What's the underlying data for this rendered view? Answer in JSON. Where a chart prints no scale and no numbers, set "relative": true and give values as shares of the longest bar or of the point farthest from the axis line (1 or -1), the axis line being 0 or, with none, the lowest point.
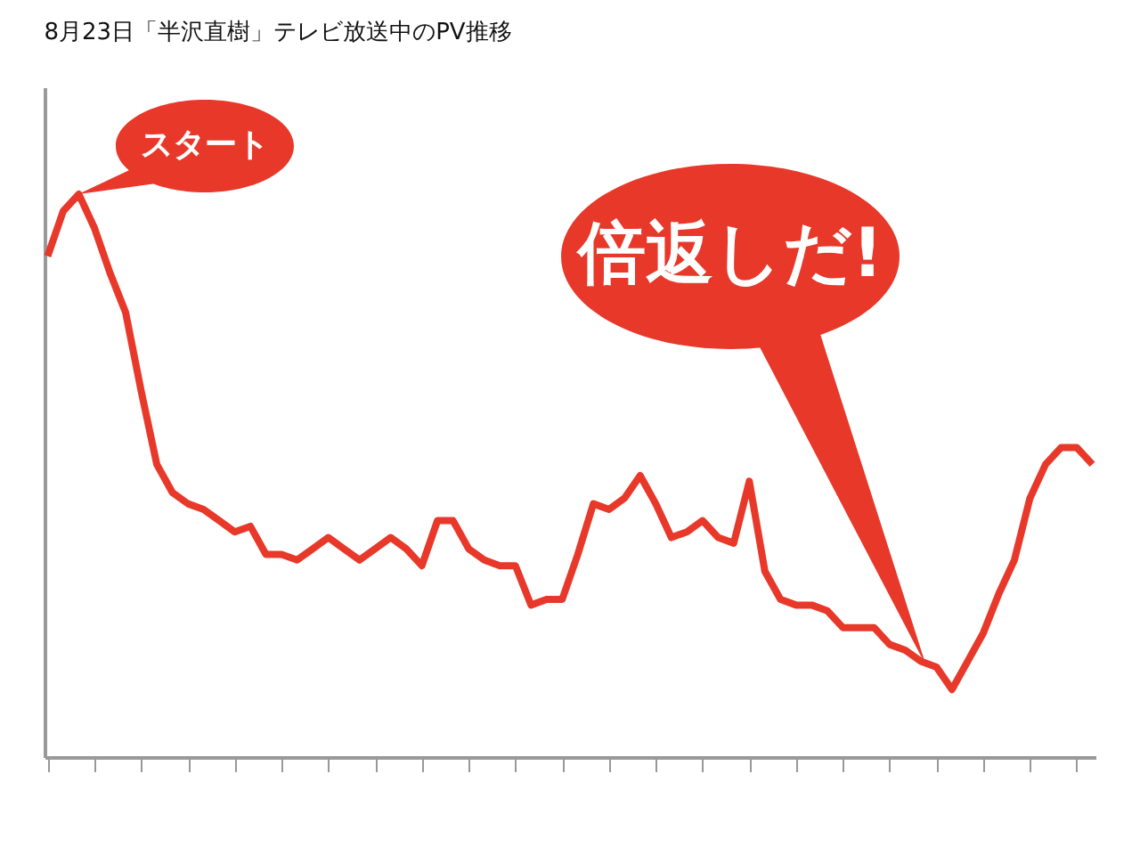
{
  "chart_data": {
    "type": "line",
    "title": "8月23日「半沢直樹」テレビ放送中のPV推移",
    "relative": true,
    "color": "#e8382a",
    "grid": false,
    "marker": "none",
    "line_style": "solid",
    "categories": [
      null,
      null,
      null,
      null,
      null,
      null,
      null,
      null,
      null,
      null,
      null,
      null,
      null,
      null,
      null,
      null,
      null,
      null,
      null,
      null,
      null,
      null,
      null,
      null,
      null,
      null,
      null,
      null,
      null,
      null,
      null,
      null,
      null,
      null,
      null,
      null,
      null,
      null,
      null,
      null,
      null,
      null,
      null,
      null,
      null,
      null,
      null,
      null,
      null,
      null,
      null,
      null,
      null,
      null,
      null,
      null,
      null,
      null,
      null,
      null,
      null,
      null,
      null,
      null,
      null,
      null,
      null,
      null
    ],
    "values": [
      0.89,
      0.97,
      1,
      0.94,
      0.86,
      0.79,
      0.65,
      0.52,
      0.47,
      0.45,
      0.44,
      0.42,
      0.4,
      0.41,
      0.36,
      0.36,
      0.35,
      0.37,
      0.39,
      0.37,
      0.35,
      0.37,
      0.39,
      0.37,
      0.34,
      0.42,
      0.42,
      0.37,
      0.35,
      0.34,
      0.34,
      0.27,
      0.28,
      0.28,
      0.36,
      0.45,
      0.44,
      0.46,
      0.5,
      0.45,
      0.39,
      0.4,
      0.42,
      0.39,
      0.38,
      0.49,
      0.33,
      0.28,
      0.27,
      0.27,
      0.26,
      0.23,
      0.23,
      0.23,
      0.2,
      0.19,
      0.17,
      0.16,
      0.12,
      0.17,
      0.22,
      0.29,
      0.35,
      0.46,
      0.52,
      0.55,
      0.55,
      0.52
    ],
    "annotations": [
      "スタート",
      "倍返しだ!"
    ]
  }
}
